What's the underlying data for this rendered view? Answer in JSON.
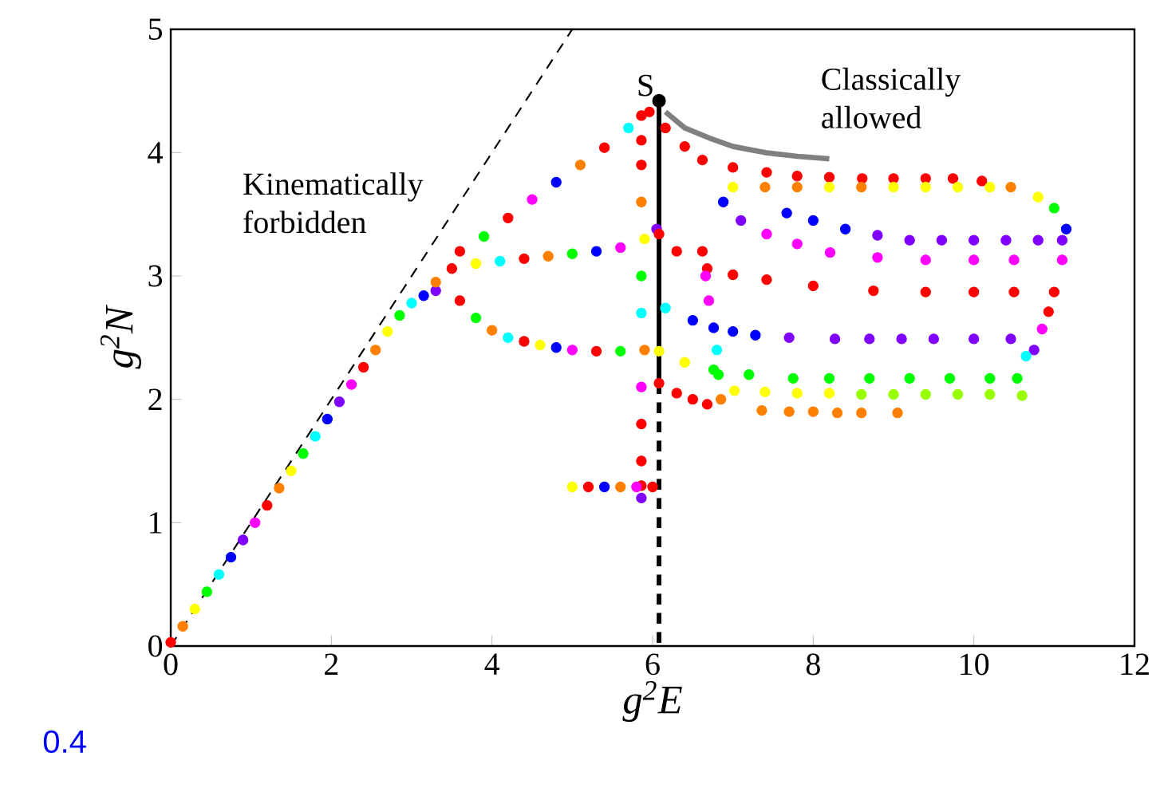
{
  "chart_data": {
    "type": "scatter",
    "xlabel": "g$^{2}$E",
    "ylabel": "g$^{2}$N",
    "xlim": [
      0,
      12
    ],
    "ylim": [
      0,
      5
    ],
    "xticks": [
      0,
      2,
      4,
      6,
      8,
      10,
      12
    ],
    "yticks": [
      0,
      1,
      2,
      3,
      4,
      5
    ],
    "grid": false,
    "marker": "circle",
    "annotations": [
      "Kinematically forbidden",
      "Classically allowed",
      {
        "text": "S",
        "x": 6.08,
        "y": 4.42
      },
      "0.4"
    ],
    "series": [
      {
        "type": "line",
        "marker": "none",
        "line_style": "dashed",
        "color": "#000000",
        "x": [
          0,
          5
        ],
        "values": [
          0,
          5
        ]
      },
      {
        "x": [
          0,
          0.15,
          0.3,
          0.45,
          0.6,
          0.75,
          0.9,
          1.05,
          1.2,
          1.35,
          1.5,
          1.65,
          1.8,
          1.95,
          2.1,
          2.25,
          2.4,
          2.55,
          2.7,
          2.85,
          3.0,
          3.15,
          3.3
        ],
        "values": [
          0.03,
          0.16,
          0.3,
          0.44,
          0.58,
          0.72,
          0.86,
          1.0,
          1.14,
          1.28,
          1.42,
          1.56,
          1.7,
          1.84,
          1.98,
          2.12,
          2.26,
          2.4,
          2.55,
          2.68,
          2.78,
          2.84,
          2.88
        ],
        "colors": [
          "#ff0000",
          "#ff8000",
          "#ffff00",
          "#00ff00",
          "#00ffff",
          "#0000ff",
          "#8000ff",
          "#ff00ff",
          "#ff0000",
          "#ff8000",
          "#ffff00",
          "#00ff00",
          "#00ffff",
          "#0000ff",
          "#8000ff",
          "#ff00ff",
          "#ff0000",
          "#ff8000",
          "#ffff00",
          "#00ff00",
          "#00ffff",
          "#0000ff",
          "#8000ff"
        ]
      },
      {
        "x": [
          3.3,
          3.6,
          3.9,
          4.2,
          4.5,
          4.8,
          5.1,
          5.4,
          5.7,
          5.96
        ],
        "values": [
          2.95,
          3.2,
          3.32,
          3.47,
          3.62,
          3.76,
          3.9,
          4.04,
          4.2,
          4.33
        ],
        "colors": [
          "#ff8000",
          "#ff0000",
          "#00ff00",
          "#ff0000",
          "#ff00ff",
          "#0000ff",
          "#ff8000",
          "#ff0000",
          "#00ffff",
          "#ff0000"
        ]
      },
      {
        "x": [
          3.5,
          3.8,
          4.1,
          4.4,
          4.7,
          5.0,
          5.3,
          5.6,
          5.9,
          6.05
        ],
        "values": [
          3.06,
          3.1,
          3.12,
          3.14,
          3.16,
          3.18,
          3.2,
          3.23,
          3.3,
          3.38
        ],
        "colors": [
          "#ff0000",
          "#ffff00",
          "#00ffff",
          "#ff0000",
          "#ff8000",
          "#00ff00",
          "#0000ff",
          "#ff00ff",
          "#ffff00",
          "#8000ff"
        ]
      },
      {
        "x": [
          3.6,
          3.8,
          4.0,
          4.2,
          4.4,
          4.6,
          4.8,
          5.0,
          5.3,
          5.6,
          5.9
        ],
        "values": [
          2.8,
          2.66,
          2.56,
          2.5,
          2.47,
          2.44,
          2.42,
          2.4,
          2.39,
          2.39,
          2.4
        ],
        "colors": [
          "#ff0000",
          "#00ff00",
          "#ff8000",
          "#00ffff",
          "#ff0000",
          "#ffff00",
          "#0000ff",
          "#ff00ff",
          "#ff0000",
          "#00ff00",
          "#ff8000"
        ]
      },
      {
        "x": [
          5.86,
          5.86,
          5.86,
          5.86,
          5.86,
          5.86,
          5.86,
          5.86,
          5.86,
          5.86,
          5.86
        ],
        "values": [
          4.3,
          4.1,
          3.9,
          3.6,
          3.0,
          2.7,
          2.1,
          1.8,
          1.5,
          1.3,
          1.2
        ],
        "colors": [
          "#ff0000",
          "#ff0000",
          "#ff0000",
          "#ff8000",
          "#00ff00",
          "#00ffff",
          "#ff00ff",
          "#ff0000",
          "#ff0000",
          "#ff0000",
          "#8000ff"
        ]
      },
      {
        "x": [
          5.0,
          5.2,
          5.4,
          5.6,
          5.8,
          6.0
        ],
        "values": [
          1.29,
          1.29,
          1.29,
          1.29,
          1.29,
          1.29
        ],
        "colors": [
          "#ffff00",
          "#ff0000",
          "#0000ff",
          "#ff8000",
          "#ff00ff",
          "#ff0000"
        ]
      },
      {
        "x": [
          6.16,
          6.4,
          6.62,
          7.0,
          7.42,
          7.8,
          8.2,
          8.61,
          9.0,
          9.4,
          9.74,
          10.1,
          10.46,
          10.8,
          11.0,
          11.15
        ],
        "values": [
          4.2,
          4.05,
          3.94,
          3.88,
          3.84,
          3.81,
          3.8,
          3.79,
          3.79,
          3.79,
          3.79,
          3.77,
          3.72,
          3.64,
          3.55,
          3.38
        ],
        "colors": [
          "#ff0000",
          "#ff0000",
          "#ff0000",
          "#ff0000",
          "#ff0000",
          "#ff0000",
          "#ff0000",
          "#ff0000",
          "#ff0000",
          "#ff0000",
          "#ff0000",
          "#ff0000",
          "#ff8000",
          "#ffff00",
          "#00ff00",
          "#0000ff"
        ]
      },
      {
        "x": [
          7.0,
          7.4,
          7.8,
          8.2,
          8.6,
          9.0,
          9.4,
          9.8,
          10.2
        ],
        "values": [
          3.72,
          3.72,
          3.72,
          3.72,
          3.72,
          3.72,
          3.72,
          3.72,
          3.72
        ],
        "colors": [
          "#ffff00",
          "#ff8000",
          "#ff8000",
          "#ffff00",
          "#ff8000",
          "#ffff00",
          "#ffff00",
          "#ffff00",
          "#ffff00"
        ]
      },
      {
        "x": [
          7.67,
          8.0,
          8.4,
          8.8,
          9.2,
          9.6,
          10.0,
          10.4,
          10.8,
          11.1
        ],
        "values": [
          3.51,
          3.45,
          3.38,
          3.33,
          3.29,
          3.29,
          3.29,
          3.29,
          3.29,
          3.29
        ],
        "colors": [
          "#0000ff",
          "#0000ff",
          "#0000ff",
          "#8000ff",
          "#8000ff",
          "#8000ff",
          "#8000ff",
          "#8000ff",
          "#8000ff",
          "#8000ff"
        ]
      },
      {
        "x": [
          6.88,
          7.1,
          7.42,
          7.8,
          8.21,
          8.8,
          9.4,
          10.0,
          10.5,
          11.1
        ],
        "values": [
          3.6,
          3.45,
          3.34,
          3.26,
          3.19,
          3.15,
          3.13,
          3.13,
          3.13,
          3.13
        ],
        "colors": [
          "#0000ff",
          "#8000ff",
          "#ff00ff",
          "#ff00ff",
          "#ff00ff",
          "#ff00ff",
          "#ff00ff",
          "#ff00ff",
          "#ff00ff",
          "#ff00ff"
        ]
      },
      {
        "x": [
          6.08,
          6.3,
          6.68,
          7.0,
          7.42,
          8.0,
          8.75,
          9.4,
          10.0,
          10.5,
          11.0,
          10.93,
          10.85
        ],
        "values": [
          3.34,
          3.2,
          3.06,
          3.01,
          2.97,
          2.92,
          2.88,
          2.87,
          2.87,
          2.87,
          2.87,
          2.71,
          2.57
        ],
        "colors": [
          "#ff0000",
          "#ff0000",
          "#ff0000",
          "#ff0000",
          "#ff0000",
          "#ff0000",
          "#ff0000",
          "#ff0000",
          "#ff0000",
          "#ff0000",
          "#ff0000",
          "#ff0000",
          "#ff00ff"
        ]
      },
      {
        "x": [
          6.16,
          6.5,
          6.76,
          7.0,
          7.28,
          7.7,
          8.27,
          8.7,
          9.1,
          9.5,
          10.0,
          10.46,
          10.75
        ],
        "values": [
          2.74,
          2.64,
          2.58,
          2.55,
          2.52,
          2.5,
          2.49,
          2.49,
          2.49,
          2.49,
          2.49,
          2.49,
          2.4
        ],
        "colors": [
          "#00ffff",
          "#0000ff",
          "#0000ff",
          "#0000ff",
          "#0000ff",
          "#8000ff",
          "#8000ff",
          "#8000ff",
          "#8000ff",
          "#8000ff",
          "#8000ff",
          "#8000ff",
          "#8000ff"
        ]
      },
      {
        "x": [
          6.08,
          6.4,
          6.76,
          7.2,
          7.75,
          8.2,
          8.7,
          9.2,
          9.7,
          10.2,
          10.54,
          10.65
        ],
        "values": [
          2.39,
          2.3,
          2.24,
          2.2,
          2.17,
          2.17,
          2.17,
          2.17,
          2.17,
          2.17,
          2.17,
          2.35
        ],
        "colors": [
          "#ffff00",
          "#ffff00",
          "#00ff00",
          "#00ff00",
          "#00ff00",
          "#00ff00",
          "#00ff00",
          "#00ff00",
          "#00ff00",
          "#00ff00",
          "#00ff00",
          "#00ffff"
        ]
      },
      {
        "x": [
          7.02,
          7.4,
          7.8,
          8.2,
          8.6,
          9.0,
          9.4,
          9.8,
          10.2,
          10.6
        ],
        "values": [
          2.07,
          2.06,
          2.05,
          2.05,
          2.04,
          2.04,
          2.04,
          2.04,
          2.04,
          2.03
        ],
        "colors": [
          "#ffff00",
          "#ffff00",
          "#ffff00",
          "#ffff00",
          "#99ff00",
          "#99ff00",
          "#99ff00",
          "#99ff00",
          "#99ff00",
          "#99ff00"
        ]
      },
      {
        "x": [
          7.36,
          7.7,
          8.0,
          8.3,
          8.6,
          9.05
        ],
        "values": [
          1.91,
          1.9,
          1.9,
          1.89,
          1.89,
          1.89
        ],
        "colors": [
          "#ff8000",
          "#ff8000",
          "#ff8000",
          "#ff8000",
          "#ff8000",
          "#ff8000"
        ]
      },
      {
        "x": [
          6.08,
          6.3,
          6.5,
          6.68
        ],
        "values": [
          2.13,
          2.05,
          2.0,
          1.96
        ],
        "colors": [
          "#ff0000",
          "#ff0000",
          "#ff0000",
          "#ff0000"
        ]
      },
      {
        "x": [
          6.62,
          6.66,
          6.7,
          6.8,
          6.82,
          6.85
        ],
        "values": [
          3.2,
          3.0,
          2.8,
          2.4,
          2.2,
          2.0
        ],
        "colors": [
          "#ff0000",
          "#ff00ff",
          "#ff00ff",
          "#00ffff",
          "#00ff00",
          "#ff8000"
        ]
      },
      {
        "type": "line",
        "marker": "none",
        "line_style": "solid",
        "color": "#808080",
        "x": [
          6.16,
          6.4,
          6.7,
          7.0,
          7.4,
          7.8,
          8.2
        ],
        "values": [
          4.33,
          4.2,
          4.12,
          4.05,
          4.0,
          3.97,
          3.95
        ]
      },
      {
        "type": "line",
        "marker": "none",
        "line_style": "solid",
        "color": "#000000",
        "x": [
          6.08,
          6.08
        ],
        "values": [
          4.42,
          2.13
        ]
      },
      {
        "type": "line",
        "marker": "none",
        "line_style": "dashed",
        "color": "#000000",
        "x": [
          6.08,
          6.08
        ],
        "values": [
          2.13,
          0
        ]
      },
      {
        "color": "#000000",
        "x": [
          6.08
        ],
        "values": [
          4.42
        ]
      }
    ]
  }
}
